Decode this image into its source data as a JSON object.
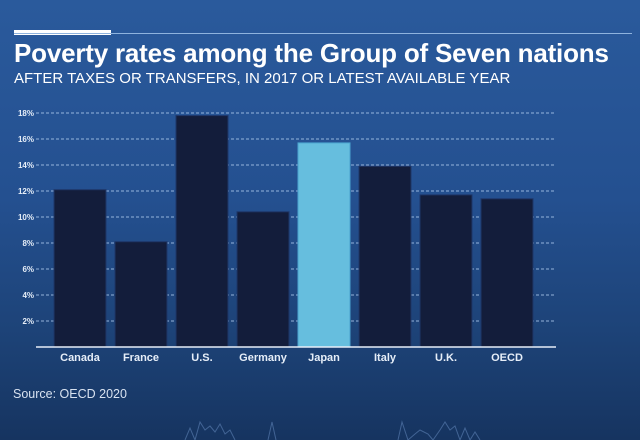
{
  "chart_data": {
    "type": "bar",
    "title": "Poverty rates among the Group of Seven nations",
    "subtitle": "AFTER TAXES OR TRANSFERS, IN 2017 OR LATEST AVAILABLE YEAR",
    "categories": [
      "Canada",
      "France",
      "U.S.",
      "Germany",
      "Japan",
      "Italy",
      "U.K.",
      "OECD"
    ],
    "values": [
      12.1,
      8.1,
      17.8,
      10.4,
      15.7,
      13.9,
      11.7,
      11.4
    ],
    "highlight": "Japan",
    "xlabel": "",
    "ylabel": "",
    "ylim": [
      0,
      18
    ],
    "yticks": [
      2,
      4,
      6,
      8,
      10,
      12,
      14,
      16,
      18
    ],
    "ytick_labels": [
      "2%",
      "4%",
      "6%",
      "8%",
      "10%",
      "12%",
      "14%",
      "16%",
      "18%"
    ],
    "grid": true,
    "legend": "none",
    "source": "Source: OECD 2020",
    "colors": {
      "bar": "#131d3b",
      "highlight": "#66bede",
      "grid": "#a9c6ea",
      "axis": "#e6eef8"
    }
  }
}
